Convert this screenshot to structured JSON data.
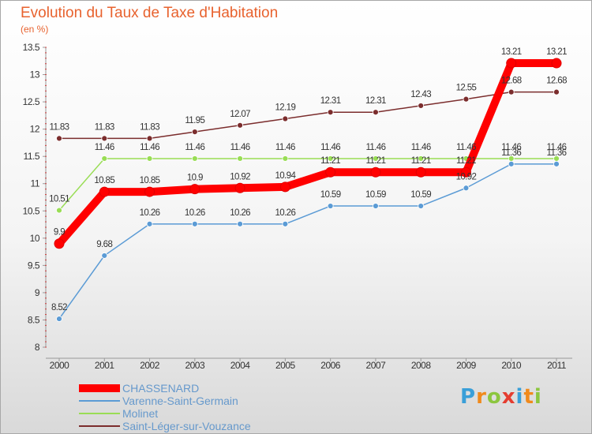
{
  "chart_data": {
    "type": "line",
    "title": "Evolution du Taux de Taxe d'Habitation",
    "subtitle": "(en %)",
    "x": [
      "2000",
      "2001",
      "2002",
      "2003",
      "2004",
      "2005",
      "2006",
      "2007",
      "2008",
      "2009",
      "2010",
      "2011"
    ],
    "ylim": [
      8,
      13.5
    ],
    "yticks": [
      "8",
      "8.5",
      "9",
      "9.5",
      "10",
      "10.5",
      "11",
      "11.5",
      "12",
      "12.5",
      "13",
      "13.5"
    ],
    "grid": false,
    "legend_position": "bottom-left",
    "series": [
      {
        "name": "CHASSENARD",
        "color": "#ff0000",
        "values": [
          9.9,
          10.85,
          10.85,
          10.9,
          10.92,
          10.94,
          11.21,
          11.21,
          11.21,
          11.21,
          13.21,
          13.21
        ],
        "labels": [
          "9.9",
          "10.85",
          "10.85",
          "10.9",
          "10.92",
          "10.94",
          "11.21",
          "11.21",
          "11.21",
          "11.21",
          "13.21",
          "13.21"
        ]
      },
      {
        "name": "Varenne-Saint-Germain",
        "color": "#5b9bd5",
        "values": [
          8.52,
          9.68,
          10.26,
          10.26,
          10.26,
          10.26,
          10.59,
          10.59,
          10.59,
          10.92,
          11.36,
          11.36
        ],
        "labels": [
          "8.52",
          "9.68",
          "10.26",
          "10.26",
          "10.26",
          "10.26",
          "10.59",
          "10.59",
          "10.59",
          "10.92",
          "11.36",
          "11.36"
        ]
      },
      {
        "name": "Molinet",
        "color": "#99dd55",
        "values": [
          10.51,
          11.46,
          11.46,
          11.46,
          11.46,
          11.46,
          11.46,
          11.46,
          11.46,
          11.46,
          11.46,
          11.46
        ],
        "labels": [
          "10.51",
          "11.46",
          "11.46",
          "11.46",
          "11.46",
          "11.46",
          "11.46",
          "11.46",
          "11.46",
          "11.46",
          "11.46",
          "11.46"
        ]
      },
      {
        "name": "Saint-Léger-sur-Vouzance",
        "color": "#7b2d2d",
        "values": [
          11.83,
          11.83,
          11.83,
          11.95,
          12.07,
          12.19,
          12.31,
          12.31,
          12.43,
          12.55,
          12.68,
          12.68
        ],
        "labels": [
          "11.83",
          "11.83",
          "11.83",
          "11.95",
          "12.07",
          "12.19",
          "12.31",
          "12.31",
          "12.43",
          "12.55",
          "12.68",
          "12.68"
        ]
      }
    ]
  },
  "branding": {
    "logo_letters": [
      "P",
      "r",
      "o",
      "x",
      "i",
      "t",
      "i"
    ],
    "logo_colors": [
      "#3a9fd8",
      "#f08a1c",
      "#8cc63f",
      "#e53d30",
      "#3a9fd8",
      "#f08a1c",
      "#8cc63f"
    ]
  }
}
